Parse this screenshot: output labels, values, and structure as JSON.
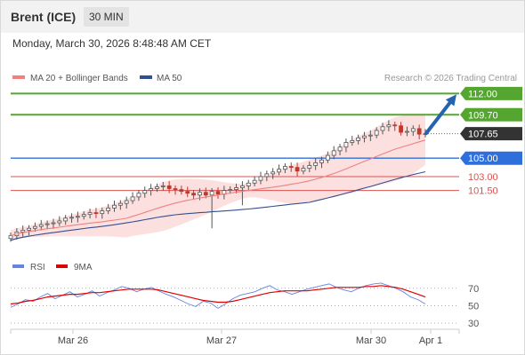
{
  "header": {
    "instrument": "Brent (ICE)",
    "timeframe": "30 MIN",
    "datetime": "Monday, March 30, 2026 8:48:48 AM CET",
    "credit": "Research © 2026 Trading Central"
  },
  "colors": {
    "green": "#55a630",
    "red": "#d9534f",
    "blue": "#2f6fdc",
    "ma20": "#f08080",
    "ma50": "#33508c",
    "band": "#fbd5d5",
    "candle_up": "#555555",
    "candle_down": "#c0392b",
    "rsi": "#6384e0",
    "rsi_ma": "#e00000",
    "arrow": "#2563b0",
    "price_tag": "#333333"
  },
  "chart_data": [
    {
      "type": "candlestick",
      "legend": [
        {
          "name": "MA 20 + Bollinger Bands",
          "color": "#f08080"
        },
        {
          "name": "MA 50",
          "color": "#33508c"
        }
      ],
      "x_ticks": [
        "Mar 26",
        "Mar 27",
        "Mar 30",
        "Apr 1"
      ],
      "ylim": [
        95.6,
        112.9
      ],
      "current_price": 107.65,
      "levels": [
        {
          "value": 112.0,
          "label": "112.00",
          "color": "#55a630",
          "kind": "target"
        },
        {
          "value": 109.7,
          "label": "109.70",
          "color": "#55a630",
          "kind": "target"
        },
        {
          "value": 105.0,
          "label": "105.00",
          "color": "#2f6fdc",
          "kind": "pivot"
        },
        {
          "value": 103.0,
          "label": "103.00",
          "color": "#d9534f",
          "kind": "support"
        },
        {
          "value": 101.5,
          "label": "101.50",
          "color": "#d9534f",
          "kind": "support"
        }
      ],
      "close_series": [
        96.6,
        97.0,
        97.2,
        97.4,
        97.6,
        97.8,
        97.9,
        98.0,
        98.2,
        98.5,
        98.6,
        98.7,
        98.9,
        99.1,
        99.0,
        99.3,
        99.6,
        99.9,
        100.1,
        100.4,
        100.8,
        101.2,
        101.5,
        101.7,
        101.9,
        102.0,
        101.7,
        101.6,
        101.4,
        101.2,
        101.0,
        101.3,
        101.0,
        101.4,
        101.1,
        101.5,
        101.6,
        101.8,
        102.0,
        102.3,
        102.6,
        103.0,
        103.3,
        103.5,
        103.8,
        104.1,
        104.0,
        103.6,
        103.9,
        104.2,
        104.5,
        104.8,
        105.3,
        105.8,
        106.2,
        106.7,
        106.9,
        107.2,
        107.4,
        107.5,
        108.0,
        108.4,
        108.6,
        108.5,
        107.8,
        107.9,
        108.2,
        107.6,
        107.65
      ]
    },
    {
      "type": "line",
      "legend": [
        {
          "name": "RSI",
          "color": "#6384e0"
        },
        {
          "name": "9MA",
          "color": "#e00000"
        }
      ],
      "yticks": [
        70,
        50,
        30
      ],
      "ylim": [
        24,
        84
      ],
      "series": [
        {
          "name": "RSI",
          "values": [
            48,
            52,
            57,
            55,
            60,
            64,
            58,
            62,
            66,
            60,
            63,
            67,
            61,
            65,
            68,
            72,
            70,
            66,
            69,
            71,
            67,
            63,
            60,
            56,
            52,
            49,
            55,
            53,
            47,
            52,
            58,
            62,
            64,
            66,
            70,
            73,
            68,
            66,
            63,
            66,
            69,
            71,
            73,
            75,
            71,
            68,
            66,
            70,
            73,
            75,
            76,
            73,
            70,
            66,
            60,
            57,
            52
          ]
        },
        {
          "name": "9MA",
          "values": [
            52,
            53,
            55,
            56,
            58,
            60,
            61,
            62,
            63,
            63,
            64,
            65,
            65,
            66,
            67,
            68,
            69,
            69,
            69,
            69,
            68,
            66,
            64,
            62,
            60,
            58,
            56,
            55,
            54,
            54,
            55,
            57,
            59,
            61,
            63,
            65,
            66,
            67,
            67,
            67,
            67,
            68,
            69,
            70,
            71,
            71,
            71,
            71,
            72,
            72,
            73,
            72,
            71,
            69,
            66,
            63,
            60
          ]
        }
      ]
    }
  ]
}
